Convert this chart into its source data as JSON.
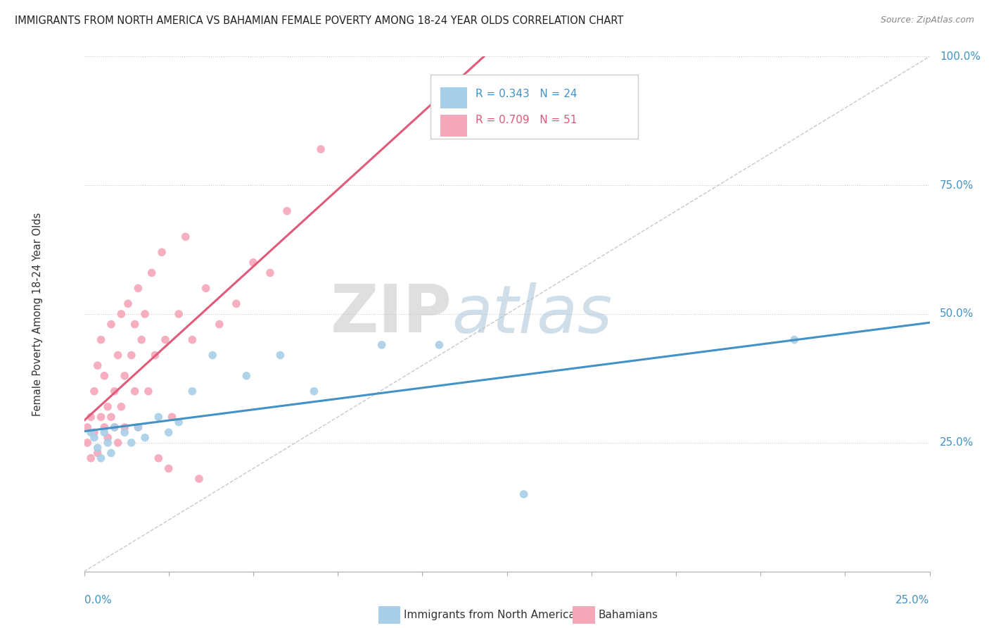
{
  "title": "IMMIGRANTS FROM NORTH AMERICA VS BAHAMIAN FEMALE POVERTY AMONG 18-24 YEAR OLDS CORRELATION CHART",
  "source": "Source: ZipAtlas.com",
  "ylabel_label": "Female Poverty Among 18-24 Year Olds",
  "legend_blue_label": "Immigrants from North America",
  "legend_pink_label": "Bahamians",
  "R_blue": 0.343,
  "N_blue": 24,
  "R_pink": 0.709,
  "N_pink": 51,
  "blue_color": "#a8cfe8",
  "pink_color": "#f4a7b9",
  "blue_line_color": "#4292c6",
  "pink_line_color": "#e05a7a",
  "axis_label_color": "#4292c6",
  "grid_color": "#cccccc",
  "watermark_zip_color": "#c8d8e8",
  "watermark_atlas_color": "#b0c8d8",
  "blue_x": [
    0.002,
    0.003,
    0.004,
    0.005,
    0.006,
    0.007,
    0.008,
    0.009,
    0.012,
    0.014,
    0.016,
    0.018,
    0.022,
    0.025,
    0.028,
    0.032,
    0.038,
    0.048,
    0.058,
    0.068,
    0.088,
    0.105,
    0.13,
    0.21
  ],
  "blue_y": [
    0.27,
    0.26,
    0.24,
    0.22,
    0.27,
    0.25,
    0.23,
    0.28,
    0.27,
    0.25,
    0.28,
    0.26,
    0.3,
    0.27,
    0.29,
    0.35,
    0.42,
    0.38,
    0.42,
    0.35,
    0.44,
    0.44,
    0.15,
    0.45
  ],
  "pink_x": [
    0.001,
    0.001,
    0.002,
    0.002,
    0.003,
    0.003,
    0.004,
    0.004,
    0.005,
    0.005,
    0.006,
    0.006,
    0.007,
    0.007,
    0.008,
    0.008,
    0.009,
    0.009,
    0.01,
    0.01,
    0.011,
    0.011,
    0.012,
    0.012,
    0.013,
    0.014,
    0.015,
    0.015,
    0.016,
    0.016,
    0.017,
    0.018,
    0.019,
    0.02,
    0.021,
    0.022,
    0.023,
    0.024,
    0.025,
    0.026,
    0.028,
    0.03,
    0.032,
    0.034,
    0.036,
    0.04,
    0.045,
    0.05,
    0.055,
    0.06,
    0.07
  ],
  "pink_y": [
    0.28,
    0.25,
    0.3,
    0.22,
    0.35,
    0.27,
    0.4,
    0.23,
    0.45,
    0.3,
    0.28,
    0.38,
    0.32,
    0.26,
    0.48,
    0.3,
    0.35,
    0.28,
    0.42,
    0.25,
    0.5,
    0.32,
    0.38,
    0.28,
    0.52,
    0.42,
    0.48,
    0.35,
    0.55,
    0.28,
    0.45,
    0.5,
    0.35,
    0.58,
    0.42,
    0.22,
    0.62,
    0.45,
    0.2,
    0.3,
    0.5,
    0.65,
    0.45,
    0.18,
    0.55,
    0.48,
    0.52,
    0.6,
    0.58,
    0.7,
    0.82
  ]
}
